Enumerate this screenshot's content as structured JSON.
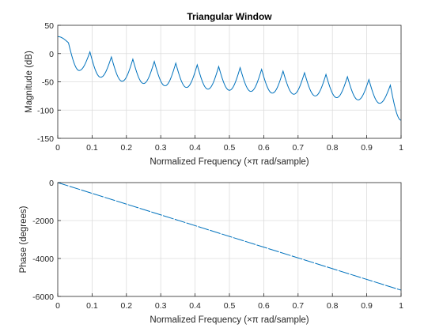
{
  "colors": {
    "line": "#0072BD",
    "grid": "#dcdcdc",
    "axis": "#262626"
  },
  "chart_data": [
    {
      "type": "line",
      "title": "Triangular Window",
      "xlabel": "Normalized Frequency  (×π rad/sample)",
      "ylabel": "Magnitude (dB)",
      "xlim": [
        0,
        1
      ],
      "ylim": [
        -150,
        50
      ],
      "xticks": [
        0,
        0.1,
        0.2,
        0.3,
        0.4,
        0.5,
        0.6,
        0.7,
        0.8,
        0.9,
        1
      ],
      "xtick_labels": [
        "0",
        "0.1",
        "0.2",
        "0.3",
        "0.4",
        "0.5",
        "0.6",
        "0.7",
        "0.8",
        "0.9",
        "1"
      ],
      "yticks": [
        50,
        0,
        -50,
        -100,
        -150
      ],
      "ytick_labels": [
        "50",
        "0",
        "-50",
        "-100",
        "-150"
      ],
      "grid": true,
      "series": [
        {
          "x": [
            0,
            0.03125,
            0.0625,
            0.09375,
            0.125,
            0.15625,
            0.1875,
            0.21875,
            0.25,
            0.28125,
            0.3125,
            0.34375,
            0.375,
            0.40625,
            0.4375,
            0.46875,
            0.5,
            0.53125,
            0.5625,
            0.59375,
            0.625,
            0.65625,
            0.6875,
            0.71875,
            0.75,
            0.78125,
            0.8125,
            0.84375,
            0.875,
            0.90625,
            0.9375,
            0.96875,
            1
          ],
          "values": [
            30,
            19,
            -30,
            3,
            -42,
            -6,
            -49,
            -10,
            -53,
            -14,
            -57,
            -17,
            -60,
            -20,
            -63,
            -23,
            -65,
            -25,
            -67,
            -28,
            -70,
            -31,
            -72,
            -34,
            -75,
            -37,
            -78,
            -41,
            -82,
            -46,
            -88,
            -56,
            -118
          ]
        }
      ]
    },
    {
      "type": "line",
      "xlabel": "Normalized Frequency  (×π rad/sample)",
      "ylabel": "Phase (degrees)",
      "xlim": [
        0,
        1
      ],
      "ylim": [
        -6000,
        0
      ],
      "xticks": [
        0,
        0.1,
        0.2,
        0.3,
        0.4,
        0.5,
        0.6,
        0.7,
        0.8,
        0.9,
        1
      ],
      "xtick_labels": [
        "0",
        "0.1",
        "0.2",
        "0.3",
        "0.4",
        "0.5",
        "0.6",
        "0.7",
        "0.8",
        "0.9",
        "1"
      ],
      "yticks": [
        0,
        -2000,
        -4000,
        -6000
      ],
      "ytick_labels": [
        "0",
        "-2000",
        "-4000",
        "-6000"
      ],
      "grid": true,
      "series": [
        {
          "x": [
            0,
            1
          ],
          "values": [
            0,
            -5670
          ]
        }
      ]
    }
  ]
}
